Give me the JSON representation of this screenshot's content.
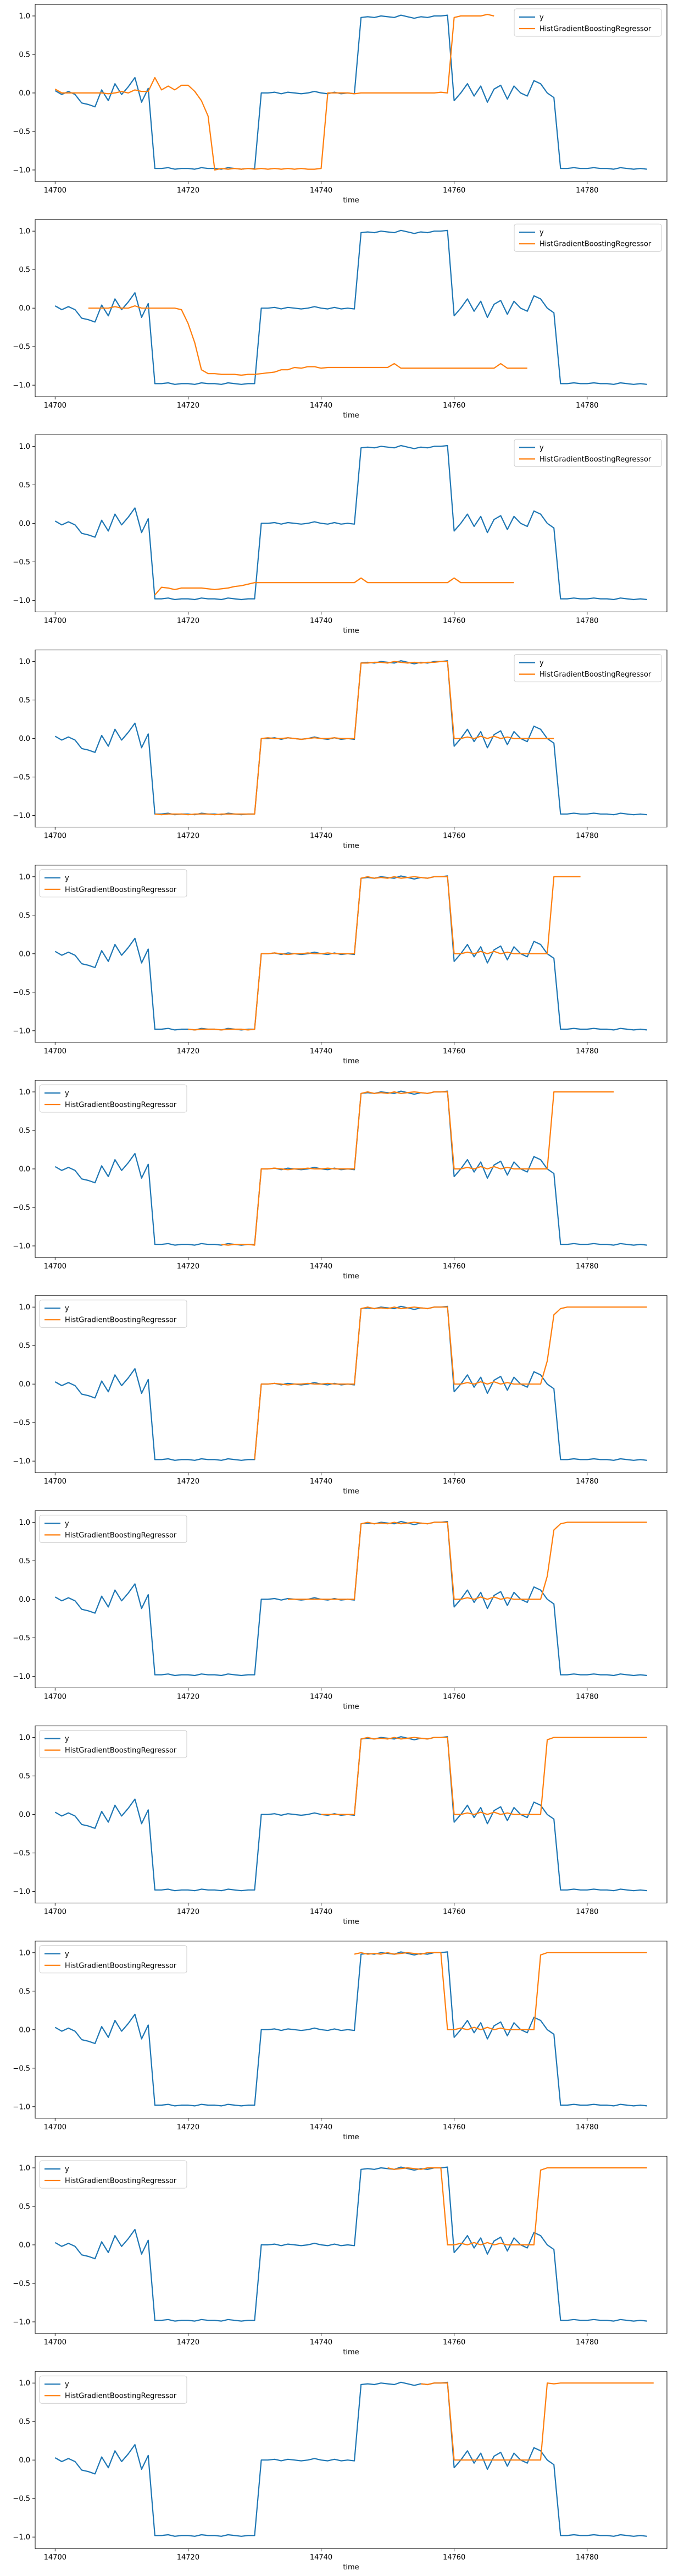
{
  "figure": {
    "panel_count": 12
  },
  "chart_data": {
    "type": "line",
    "xlabel": "time",
    "xticks": [
      14700,
      14720,
      14740,
      14760,
      14780
    ],
    "xlim": [
      14697,
      14792
    ],
    "yticks": [
      1.0,
      0.5,
      0.0,
      -0.5,
      -1.0
    ],
    "ytick_labels": [
      "1.0",
      "0.5",
      "0.0",
      "−0.5",
      "−1.0"
    ],
    "ylim": [
      -1.15,
      1.15
    ],
    "grid": false,
    "colors": {
      "y": "#1f77b4",
      "pred": "#ff7f0e"
    },
    "series_names": [
      "y",
      "HistGradientBoostingRegressor"
    ],
    "y_series": {
      "x_start": 14700,
      "values": [
        0.03,
        -0.02,
        0.02,
        -0.02,
        -0.13,
        -0.15,
        -0.18,
        0.04,
        -0.1,
        0.12,
        -0.02,
        0.08,
        0.2,
        -0.12,
        0.06,
        -0.98,
        -0.98,
        -0.97,
        -0.99,
        -0.98,
        -0.98,
        -0.99,
        -0.97,
        -0.98,
        -0.98,
        -0.99,
        -0.97,
        -0.98,
        -0.99,
        -0.98,
        -0.98,
        0.0,
        0.0,
        0.01,
        -0.01,
        0.01,
        0.0,
        -0.01,
        0.0,
        0.02,
        0.0,
        -0.01,
        0.01,
        -0.01,
        0.0,
        -0.01,
        0.98,
        0.99,
        0.98,
        1.0,
        0.99,
        0.98,
        1.01,
        0.99,
        0.97,
        0.99,
        0.98,
        1.0,
        1.0,
        1.01,
        -0.1,
        0.0,
        0.12,
        -0.04,
        0.09,
        -0.12,
        0.05,
        0.1,
        -0.08,
        0.09,
        0.0,
        -0.04,
        0.16,
        0.12,
        0.0,
        -0.06,
        -0.98,
        -0.98,
        -0.97,
        -0.98,
        -0.98,
        -0.97,
        -0.98,
        -0.98,
        -0.99,
        -0.97,
        -0.98,
        -0.99,
        -0.98,
        -0.99
      ]
    },
    "panels": [
      {
        "legend_loc": "upper right",
        "prediction": {
          "x_start": 14700,
          "values": [
            0.05,
            0.0,
            0.0,
            0.0,
            0.0,
            0.0,
            0.0,
            0.0,
            -0.01,
            0.0,
            0.02,
            0.0,
            0.04,
            0.02,
            0.02,
            0.2,
            0.04,
            0.09,
            0.04,
            0.1,
            0.1,
            0.02,
            -0.1,
            -0.3,
            -1.0,
            -0.98,
            -0.99,
            -0.98,
            -0.99,
            -0.98,
            -0.99,
            -0.98,
            -0.99,
            -0.98,
            -0.99,
            -0.98,
            -0.99,
            -0.98,
            -0.99,
            -0.99,
            -0.98,
            0.0,
            0.0,
            0.0,
            0.0,
            -0.01,
            0.0,
            0.0,
            0.0,
            0.0,
            0.0,
            0.0,
            0.0,
            0.0,
            0.0,
            0.0,
            0.0,
            0.0,
            0.01,
            0.0,
            0.98,
            1.0,
            1.0,
            1.0,
            1.0,
            1.02,
            1.0
          ]
        }
      },
      {
        "legend_loc": "upper right",
        "prediction": {
          "x_start": 14705,
          "values": [
            0.0,
            0.0,
            0.0,
            0.0,
            0.02,
            0.0,
            0.0,
            0.03,
            0.0,
            0.0,
            0.0,
            0.0,
            0.0,
            0.0,
            -0.02,
            -0.2,
            -0.45,
            -0.8,
            -0.85,
            -0.85,
            -0.86,
            -0.86,
            -0.86,
            -0.87,
            -0.86,
            -0.86,
            -0.85,
            -0.84,
            -0.83,
            -0.8,
            -0.8,
            -0.77,
            -0.78,
            -0.76,
            -0.76,
            -0.78,
            -0.77,
            -0.77,
            -0.77,
            -0.77,
            -0.77,
            -0.77,
            -0.77,
            -0.77,
            -0.77,
            -0.77,
            -0.72,
            -0.78,
            -0.78,
            -0.78,
            -0.78,
            -0.78,
            -0.78,
            -0.78,
            -0.78,
            -0.78,
            -0.78,
            -0.78,
            -0.78,
            -0.78,
            -0.78,
            -0.78,
            -0.72,
            -0.78,
            -0.78,
            -0.78,
            -0.78
          ]
        }
      },
      {
        "legend_loc": "upper right",
        "prediction": {
          "x_start": 14715,
          "values": [
            -0.93,
            -0.83,
            -0.84,
            -0.86,
            -0.84,
            -0.84,
            -0.84,
            -0.84,
            -0.85,
            -0.86,
            -0.85,
            -0.84,
            -0.82,
            -0.81,
            -0.79,
            -0.77,
            -0.77,
            -0.77,
            -0.77,
            -0.77,
            -0.77,
            -0.77,
            -0.77,
            -0.77,
            -0.77,
            -0.77,
            -0.77,
            -0.77,
            -0.77,
            -0.77,
            -0.77,
            -0.71,
            -0.77,
            -0.77,
            -0.77,
            -0.77,
            -0.77,
            -0.77,
            -0.77,
            -0.77,
            -0.77,
            -0.77,
            -0.77,
            -0.77,
            -0.77,
            -0.71,
            -0.77,
            -0.77,
            -0.77,
            -0.77,
            -0.77,
            -0.77,
            -0.77,
            -0.77,
            -0.77
          ]
        }
      },
      {
        "legend_loc": "upper right",
        "prediction": {
          "x_start": 14715,
          "values": [
            -0.98,
            -0.99,
            -0.98,
            -0.98,
            -0.98,
            -0.99,
            -0.98,
            -0.98,
            -0.98,
            -0.99,
            -0.98,
            -0.98,
            -0.98,
            -0.98,
            -0.98,
            -0.98,
            0.0,
            0.01,
            0.0,
            0.0,
            0.01,
            0.0,
            -0.01,
            0.0,
            0.01,
            0.0,
            0.0,
            0.01,
            0.0,
            0.0,
            0.0,
            0.98,
            0.98,
            0.99,
            0.99,
            0.98,
            1.0,
            0.99,
            0.98,
            0.99,
            0.98,
            0.99,
            0.99,
            1.0,
            1.0,
            0.0,
            0.0,
            0.02,
            0.0,
            0.03,
            0.0,
            0.03,
            0.0,
            0.02,
            0.0,
            0.0,
            0.0,
            0.0,
            0.0,
            0.0,
            0.0
          ]
        }
      },
      {
        "legend_loc": "upper left",
        "prediction": {
          "x_start": 14720,
          "values": [
            -0.98,
            -0.99,
            -0.98,
            -0.98,
            -0.98,
            -0.99,
            -0.98,
            -0.98,
            -0.98,
            -0.99,
            -0.98,
            0.0,
            0.0,
            0.01,
            0.0,
            -0.01,
            0.0,
            0.0,
            0.01,
            0.0,
            0.0,
            0.01,
            0.0,
            0.0,
            0.0,
            0.0,
            0.98,
            1.0,
            0.98,
            0.99,
            0.98,
            1.0,
            0.98,
            0.99,
            1.0,
            0.99,
            0.98,
            1.0,
            1.0,
            1.0,
            0.0,
            0.0,
            0.02,
            0.0,
            0.03,
            0.0,
            0.03,
            0.0,
            0.02,
            0.0,
            0.0,
            0.0,
            0.0,
            0.0,
            0.0,
            1.0,
            1.0,
            1.0,
            1.0,
            1.0
          ]
        }
      },
      {
        "legend_loc": "upper left",
        "prediction": {
          "x_start": 14725,
          "values": [
            -0.98,
            -0.99,
            -0.98,
            -0.98,
            -0.98,
            -0.99,
            0.0,
            0.0,
            0.01,
            0.0,
            -0.01,
            0.0,
            0.0,
            0.01,
            0.0,
            0.0,
            0.01,
            0.0,
            0.0,
            0.0,
            0.0,
            0.98,
            1.0,
            0.98,
            0.99,
            0.98,
            1.0,
            0.98,
            0.99,
            1.0,
            0.99,
            0.98,
            1.0,
            1.0,
            1.0,
            0.0,
            0.0,
            0.02,
            0.0,
            0.03,
            0.0,
            0.03,
            0.0,
            0.02,
            0.0,
            0.0,
            0.0,
            0.0,
            0.0,
            0.0,
            1.0,
            1.0,
            1.0,
            1.0,
            1.0,
            1.0,
            1.0,
            1.0,
            1.0,
            1.0
          ]
        }
      },
      {
        "legend_loc": "upper left",
        "prediction": {
          "x_start": 14730,
          "values": [
            -0.98,
            0.0,
            0.0,
            0.01,
            0.0,
            -0.01,
            0.0,
            0.0,
            0.01,
            0.0,
            0.0,
            0.01,
            0.0,
            0.0,
            0.0,
            0.0,
            0.98,
            1.0,
            0.98,
            0.99,
            0.98,
            1.0,
            0.98,
            0.99,
            1.0,
            0.99,
            0.98,
            1.0,
            1.0,
            1.0,
            0.0,
            0.0,
            0.02,
            0.0,
            0.03,
            0.0,
            0.03,
            0.0,
            0.02,
            0.0,
            0.0,
            0.0,
            0.0,
            0.0,
            0.3,
            0.9,
            0.98,
            1.0,
            1.0,
            1.0,
            1.0,
            1.0,
            1.0,
            1.0,
            1.0,
            1.0,
            1.0,
            1.0,
            1.0,
            1.0
          ]
        }
      },
      {
        "legend_loc": "upper left",
        "prediction": {
          "x_start": 14735,
          "values": [
            0.0,
            0.0,
            0.0,
            0.0,
            0.0,
            0.0,
            0.0,
            0.0,
            0.0,
            0.0,
            0.0,
            0.98,
            1.0,
            0.98,
            0.99,
            0.98,
            1.0,
            0.98,
            0.99,
            1.0,
            0.99,
            0.98,
            1.0,
            1.0,
            1.0,
            0.0,
            0.0,
            0.02,
            0.0,
            0.03,
            0.0,
            0.03,
            0.0,
            0.02,
            0.0,
            0.0,
            0.0,
            0.0,
            0.0,
            0.3,
            0.9,
            0.98,
            1.0,
            1.0,
            1.0,
            1.0,
            1.0,
            1.0,
            1.0,
            1.0,
            1.0,
            1.0,
            1.0,
            1.0,
            1.0
          ]
        }
      },
      {
        "legend_loc": "upper left",
        "prediction": {
          "x_start": 14740,
          "values": [
            0.0,
            0.0,
            0.0,
            0.0,
            0.0,
            0.0,
            0.98,
            1.0,
            0.98,
            0.99,
            0.98,
            1.0,
            0.98,
            0.99,
            1.0,
            0.99,
            0.98,
            1.0,
            1.0,
            1.0,
            0.0,
            0.0,
            0.02,
            0.0,
            0.03,
            0.0,
            0.03,
            0.0,
            0.02,
            0.0,
            0.0,
            0.0,
            0.0,
            0.0,
            0.97,
            1.0,
            1.0,
            1.0,
            1.0,
            1.0,
            1.0,
            1.0,
            1.0,
            1.0,
            1.0,
            1.0,
            1.0,
            1.0,
            1.0,
            1.0
          ]
        }
      },
      {
        "legend_loc": "upper left",
        "prediction": {
          "x_start": 14745,
          "values": [
            0.98,
            1.0,
            0.98,
            0.99,
            0.98,
            1.0,
            0.98,
            0.99,
            1.0,
            0.99,
            0.98,
            1.0,
            1.0,
            1.0,
            0.0,
            0.0,
            0.02,
            0.0,
            0.03,
            0.0,
            0.03,
            0.0,
            0.02,
            0.0,
            0.0,
            0.0,
            0.0,
            0.0,
            0.97,
            1.0,
            1.0,
            1.0,
            1.0,
            1.0,
            1.0,
            1.0,
            1.0,
            1.0,
            1.0,
            1.0,
            1.0,
            1.0,
            1.0,
            1.0,
            1.0
          ]
        }
      },
      {
        "legend_loc": "upper left",
        "prediction": {
          "x_start": 14750,
          "values": [
            1.0,
            0.98,
            0.99,
            1.0,
            0.99,
            0.98,
            1.0,
            1.0,
            1.0,
            0.0,
            0.0,
            0.02,
            0.0,
            0.03,
            0.0,
            0.03,
            0.0,
            0.02,
            0.0,
            0.0,
            0.0,
            0.0,
            0.0,
            0.97,
            1.0,
            1.0,
            1.0,
            1.0,
            1.0,
            1.0,
            1.0,
            1.0,
            1.0,
            1.0,
            1.0,
            1.0,
            1.0,
            1.0,
            1.0,
            1.0
          ]
        }
      },
      {
        "legend_loc": "upper left",
        "prediction": {
          "x_start": 14755,
          "values": [
            0.99,
            0.98,
            1.0,
            1.0,
            1.0,
            0.0,
            0.0,
            0.0,
            0.0,
            0.0,
            0.0,
            0.0,
            0.0,
            0.0,
            0.0,
            0.0,
            0.0,
            0.0,
            0.0,
            1.0,
            0.99,
            1.0,
            1.0,
            1.0,
            1.0,
            1.0,
            1.0,
            1.0,
            1.0,
            1.0,
            1.0,
            1.0,
            1.0,
            1.0,
            1.0,
            1.0
          ]
        }
      }
    ]
  }
}
